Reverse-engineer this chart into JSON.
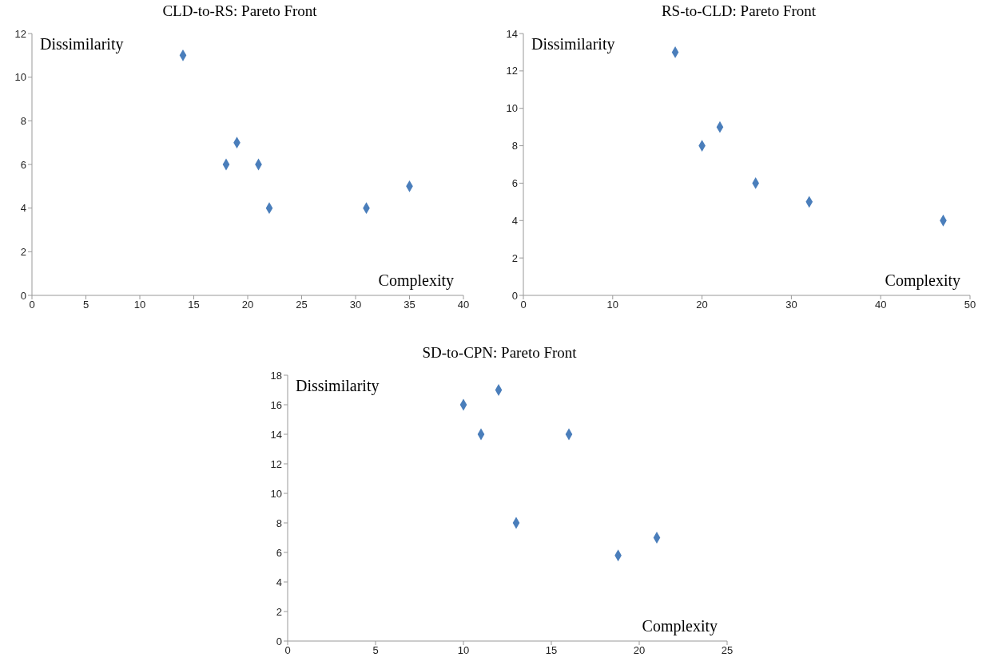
{
  "chart_data": [
    {
      "type": "scatter",
      "title": "CLD-to-RS: Pareto Front",
      "xlabel": "Complexity",
      "ylabel": "Dissimilarity",
      "marker": "diamond",
      "grid": false,
      "legend": false,
      "xlim": [
        0,
        40
      ],
      "xticks": [
        0,
        5,
        10,
        15,
        20,
        25,
        30,
        35,
        40
      ],
      "ylim": [
        0,
        12
      ],
      "yticks": [
        0,
        2,
        4,
        6,
        8,
        10,
        12
      ],
      "series": [
        {
          "color": "#4a7ebb",
          "x": [
            14,
            18,
            19,
            21,
            22,
            31,
            35
          ],
          "values": [
            11,
            6,
            7,
            6,
            4,
            4,
            5
          ]
        }
      ]
    },
    {
      "type": "scatter",
      "title": "RS-to-CLD: Pareto Front",
      "xlabel": "Complexity",
      "ylabel": "Dissimilarity",
      "marker": "diamond",
      "grid": false,
      "legend": false,
      "xlim": [
        0,
        50
      ],
      "xticks": [
        0,
        10,
        20,
        30,
        40,
        50
      ],
      "ylim": [
        0,
        14
      ],
      "yticks": [
        0,
        2,
        4,
        6,
        8,
        10,
        12,
        14
      ],
      "series": [
        {
          "color": "#4a7ebb",
          "x": [
            17,
            20,
            22,
            26,
            32,
            47
          ],
          "values": [
            13,
            8,
            9,
            6,
            5,
            4
          ]
        }
      ]
    },
    {
      "type": "scatter",
      "title": "SD-to-CPN: Pareto Front",
      "xlabel": "Complexity",
      "ylabel": "Dissimilarity",
      "marker": "diamond",
      "grid": false,
      "legend": false,
      "xlim": [
        0,
        25
      ],
      "xticks": [
        0,
        5,
        10,
        15,
        20,
        25
      ],
      "ylim": [
        0,
        18
      ],
      "yticks": [
        0,
        2,
        4,
        6,
        8,
        10,
        12,
        14,
        16,
        18
      ],
      "series": [
        {
          "color": "#4a7ebb",
          "x": [
            10,
            11,
            12,
            13,
            16,
            18.8,
            21
          ],
          "values": [
            16,
            14,
            17,
            8,
            14,
            5.8,
            7
          ]
        }
      ]
    }
  ]
}
